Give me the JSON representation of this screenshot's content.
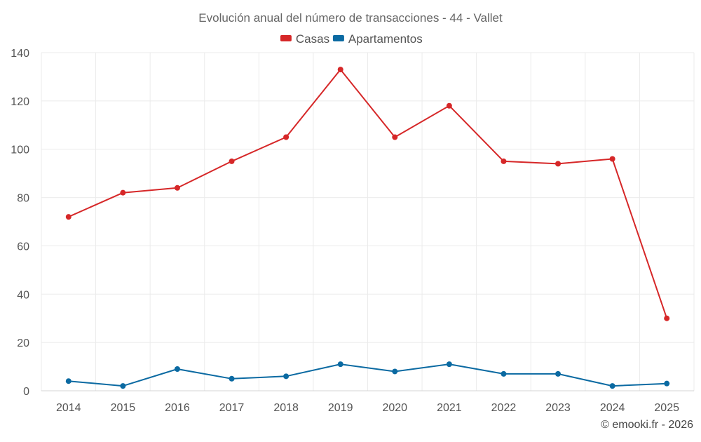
{
  "chart_data": {
    "type": "line",
    "title": "Evolución anual del número de transacciones - 44 - Vallet",
    "categories": [
      "2014",
      "2015",
      "2016",
      "2017",
      "2018",
      "2019",
      "2020",
      "2021",
      "2022",
      "2023",
      "2024",
      "2025"
    ],
    "series": [
      {
        "name": "Casas",
        "color": "#d62728",
        "values": [
          72,
          82,
          84,
          95,
          105,
          133,
          105,
          118,
          95,
          94,
          96,
          30
        ]
      },
      {
        "name": "Apartamentos",
        "color": "#0b6aa2",
        "values": [
          4,
          2,
          9,
          5,
          6,
          11,
          8,
          11,
          7,
          7,
          2,
          3
        ]
      }
    ],
    "ylim": [
      0,
      140
    ],
    "yticks": [
      0,
      20,
      40,
      60,
      80,
      100,
      120,
      140
    ],
    "grid": true,
    "legend_position": "top-center",
    "xlabel": "",
    "ylabel": ""
  },
  "credit": "© emooki.fr - 2026"
}
